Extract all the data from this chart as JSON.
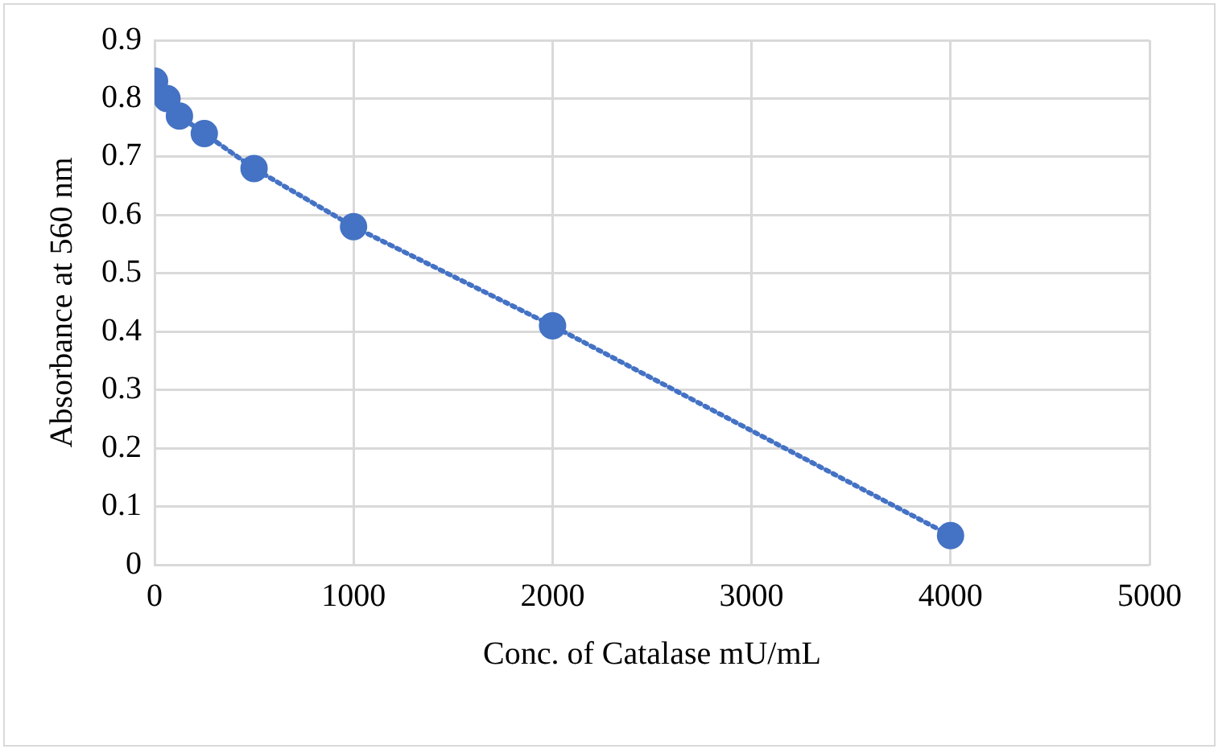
{
  "chart_data": {
    "type": "line",
    "xlabel": "Conc. of Catalase mU/mL",
    "ylabel": "Absorbance at 560 nm",
    "x": [
      0,
      62.5,
      125,
      250,
      500,
      1000,
      2000,
      4000
    ],
    "series": [
      {
        "color": "#4472c4",
        "values": [
          0.83,
          0.8,
          0.77,
          0.74,
          0.68,
          0.58,
          0.41,
          0.05
        ]
      }
    ],
    "xlim": [
      0,
      5000
    ],
    "xticks": [
      0,
      1000,
      2000,
      3000,
      4000,
      5000
    ],
    "ylim": [
      0,
      0.9
    ],
    "yticks": [
      0,
      0.1,
      0.2,
      0.3,
      0.4,
      0.5,
      0.6,
      0.7,
      0.8,
      0.9
    ],
    "grid": true,
    "legend": false,
    "marker": "circle",
    "line_style": "dotted"
  }
}
